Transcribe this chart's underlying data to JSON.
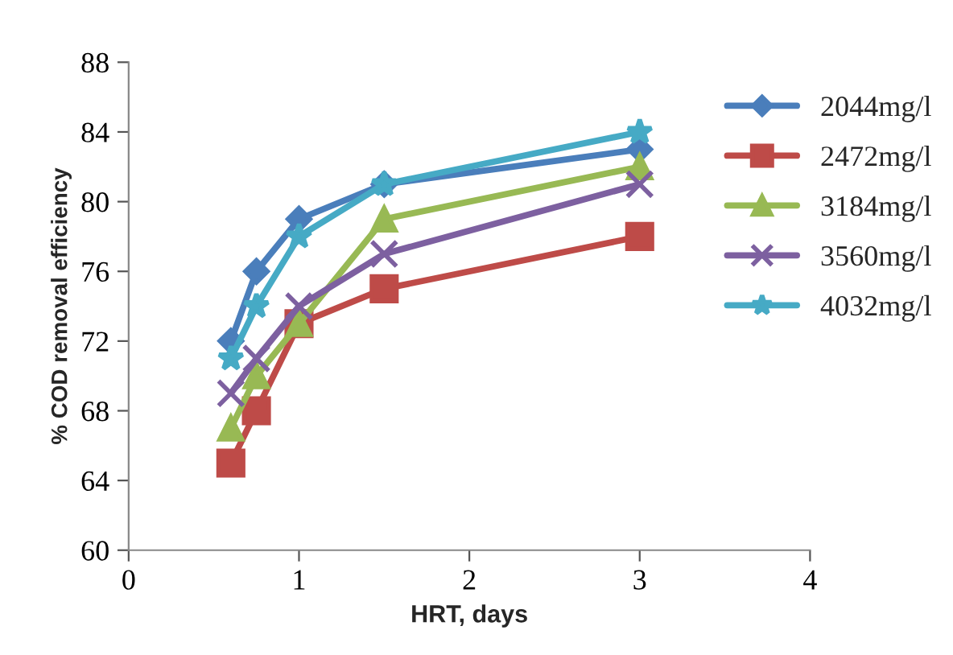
{
  "chart_data": {
    "type": "line",
    "xlabel": "HRT, days",
    "ylabel": "% COD removal efficiency",
    "x": [
      0.6,
      0.75,
      1,
      1.5,
      3
    ],
    "series": [
      {
        "name": "2044mg/l",
        "color": "#4a7ebb",
        "marker": "diamond",
        "values": [
          72,
          76,
          79,
          81,
          83
        ]
      },
      {
        "name": "2472mg/l",
        "color": "#be4b48",
        "marker": "square",
        "values": [
          65,
          68,
          73,
          75,
          78
        ]
      },
      {
        "name": "3184mg/l",
        "color": "#98b954",
        "marker": "triangle",
        "values": [
          67,
          70,
          73,
          79,
          82
        ]
      },
      {
        "name": "3560mg/l",
        "color": "#7d60a0",
        "marker": "cross",
        "values": [
          69,
          71,
          74,
          77,
          81
        ]
      },
      {
        "name": "4032mg/l",
        "color": "#46aac5",
        "marker": "star",
        "values": [
          71,
          74,
          78,
          81,
          84
        ]
      }
    ],
    "xlim": [
      0,
      4
    ],
    "xticks": [
      0,
      1,
      2,
      3,
      4
    ],
    "ylim": [
      60,
      88
    ],
    "yticks": [
      60,
      64,
      68,
      72,
      76,
      80,
      84,
      88
    ],
    "grid": false,
    "legend": "right",
    "line_style": "solid"
  }
}
